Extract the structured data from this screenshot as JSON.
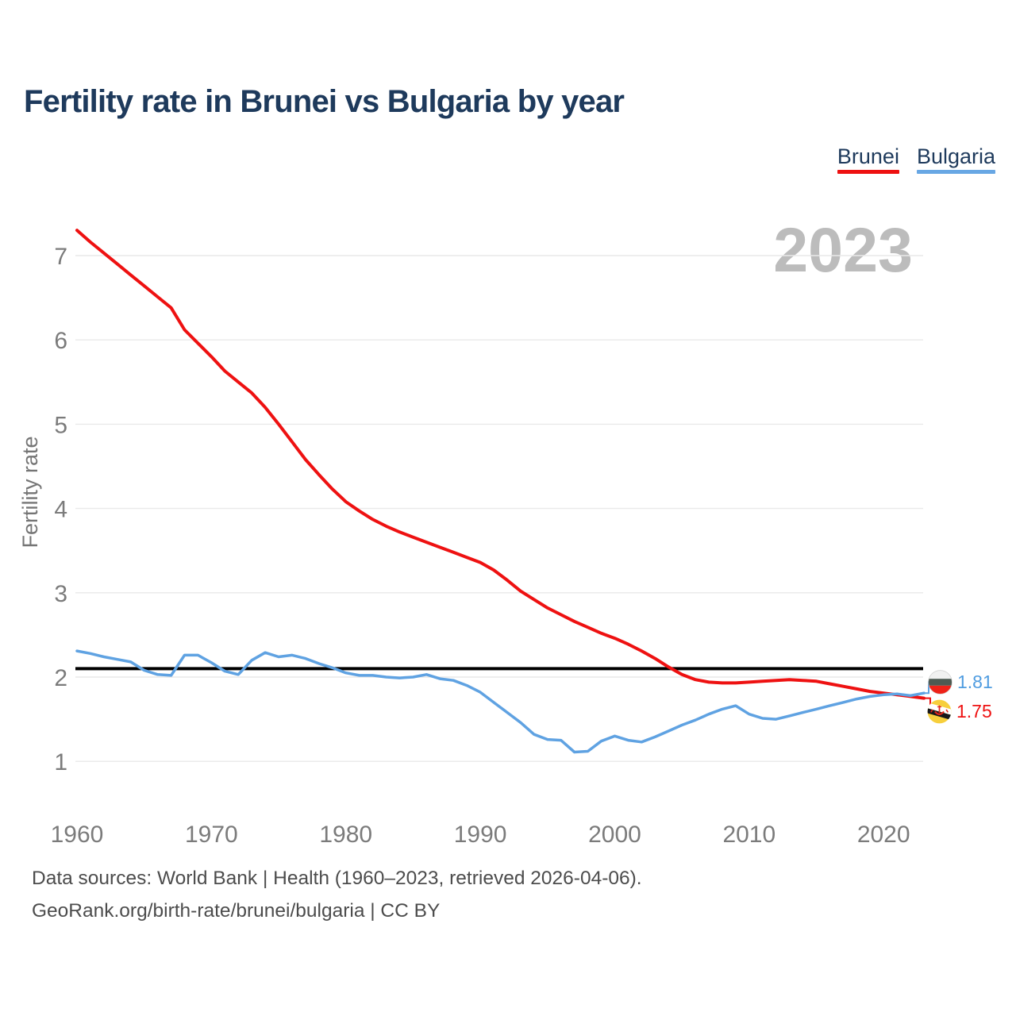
{
  "title": "Fertility rate in Brunei vs Bulgaria by year",
  "watermark": "2023",
  "legend": [
    {
      "label": "Brunei",
      "color": "#ee1111"
    },
    {
      "label": "Bulgaria",
      "color": "#68a7e4"
    }
  ],
  "end_labels": [
    {
      "series": "Bulgaria",
      "value": "1.81",
      "color": "#4f9ce0",
      "flag": "bulgaria-flag"
    },
    {
      "series": "Brunei",
      "value": "1.75",
      "color": "#ee1111",
      "flag": "brunei-flag"
    }
  ],
  "footer": {
    "line1": "Data sources: World Bank | Health (1960–2023, retrieved 2026-04-06).",
    "line2": "GeoRank.org/birth-rate/brunei/bulgaria | CC BY"
  },
  "chart_data": {
    "type": "line",
    "title": "Fertility rate in Brunei vs Bulgaria by year",
    "xlabel": "",
    "ylabel": "Fertility rate",
    "grid": "horizontal",
    "xlim": [
      1960,
      2023
    ],
    "ylim": [
      0.75,
      7.45
    ],
    "x_ticks": [
      1960,
      1970,
      1980,
      1990,
      2000,
      2010,
      2020
    ],
    "y_ticks": [
      1,
      2,
      3,
      4,
      5,
      6,
      7
    ],
    "reference_line": {
      "value": 2.1,
      "color": "#000000"
    },
    "years": [
      1960,
      1961,
      1962,
      1963,
      1964,
      1965,
      1966,
      1967,
      1968,
      1969,
      1970,
      1971,
      1972,
      1973,
      1974,
      1975,
      1976,
      1977,
      1978,
      1979,
      1980,
      1981,
      1982,
      1983,
      1984,
      1985,
      1986,
      1987,
      1988,
      1989,
      1990,
      1991,
      1992,
      1993,
      1994,
      1995,
      1996,
      1997,
      1998,
      1999,
      2000,
      2001,
      2002,
      2003,
      2004,
      2005,
      2006,
      2007,
      2008,
      2009,
      2010,
      2011,
      2012,
      2013,
      2014,
      2015,
      2016,
      2017,
      2018,
      2019,
      2020,
      2021,
      2022,
      2023
    ],
    "series": [
      {
        "name": "Brunei",
        "color": "#ee1111",
        "values": [
          7.3,
          7.16,
          7.03,
          6.9,
          6.77,
          6.64,
          6.51,
          6.38,
          6.12,
          5.96,
          5.8,
          5.63,
          5.5,
          5.37,
          5.2,
          5.0,
          4.79,
          4.58,
          4.4,
          4.23,
          4.08,
          3.97,
          3.87,
          3.79,
          3.72,
          3.66,
          3.6,
          3.54,
          3.48,
          3.42,
          3.36,
          3.27,
          3.15,
          3.02,
          2.92,
          2.82,
          2.74,
          2.66,
          2.59,
          2.52,
          2.46,
          2.39,
          2.31,
          2.22,
          2.12,
          2.03,
          1.97,
          1.94,
          1.93,
          1.93,
          1.94,
          1.95,
          1.96,
          1.97,
          1.96,
          1.95,
          1.92,
          1.89,
          1.86,
          1.83,
          1.81,
          1.79,
          1.77,
          1.75
        ]
      },
      {
        "name": "Bulgaria",
        "color": "#5fa2e2",
        "values": [
          2.31,
          2.28,
          2.24,
          2.21,
          2.18,
          2.08,
          2.03,
          2.02,
          2.26,
          2.26,
          2.17,
          2.07,
          2.03,
          2.2,
          2.29,
          2.24,
          2.26,
          2.22,
          2.16,
          2.11,
          2.05,
          2.02,
          2.02,
          2.0,
          1.99,
          2.0,
          2.03,
          1.98,
          1.96,
          1.9,
          1.82,
          1.7,
          1.58,
          1.46,
          1.32,
          1.26,
          1.25,
          1.11,
          1.12,
          1.24,
          1.3,
          1.25,
          1.23,
          1.29,
          1.36,
          1.43,
          1.49,
          1.56,
          1.62,
          1.66,
          1.56,
          1.51,
          1.5,
          1.54,
          1.58,
          1.62,
          1.66,
          1.7,
          1.74,
          1.77,
          1.79,
          1.8,
          1.78,
          1.81
        ]
      }
    ]
  }
}
